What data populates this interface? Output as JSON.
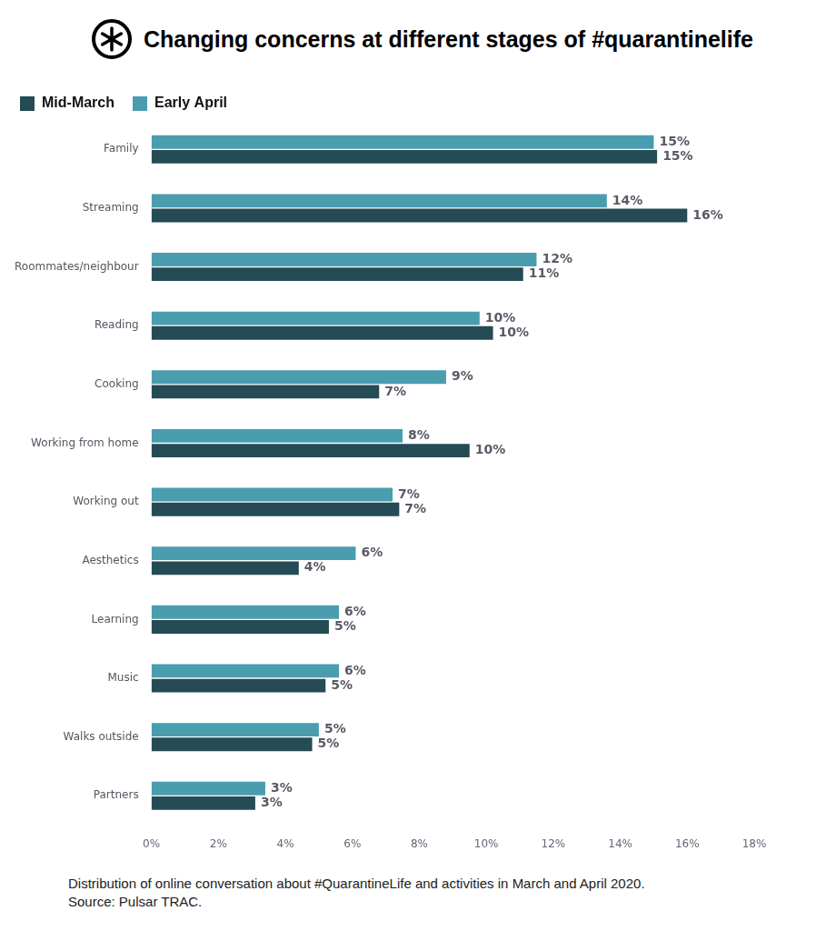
{
  "chart_data": {
    "type": "bar",
    "title": "Changing concerns at different stages of #quarantinelife",
    "caption": "Distribution of online conversation about #QuarantineLife and activities in March and April 2020. Source: Pulsar TRAC.",
    "orientation": "horizontal",
    "categories": [
      "Family",
      "Streaming",
      "Roommates/neighbour",
      "Reading",
      "Cooking",
      "Working from home",
      "Working out",
      "Aesthetics",
      "Learning",
      "Music",
      "Walks outside",
      "Partners"
    ],
    "series": [
      {
        "name": "Mid-March",
        "color": "#254b55",
        "values": [
          15.1,
          16.0,
          11.1,
          10.2,
          6.8,
          9.5,
          7.4,
          4.4,
          5.3,
          5.2,
          4.8,
          3.1
        ],
        "value_labels": [
          "15%",
          "16%",
          "11%",
          "10%",
          "7%",
          "10%",
          "7%",
          "4%",
          "5%",
          "5%",
          "5%",
          "3%"
        ]
      },
      {
        "name": "Early April",
        "color": "#4a9daf",
        "values": [
          15.0,
          13.6,
          11.5,
          9.8,
          8.8,
          7.5,
          7.2,
          6.1,
          5.6,
          5.6,
          5.0,
          3.4
        ],
        "value_labels": [
          "15%",
          "14%",
          "12%",
          "10%",
          "9%",
          "8%",
          "7%",
          "6%",
          "6%",
          "6%",
          "5%",
          "3%"
        ]
      }
    ],
    "xlim": [
      0,
      18
    ],
    "xticks": [
      {
        "value": 0,
        "label": "0%"
      },
      {
        "value": 2,
        "label": "2%"
      },
      {
        "value": 4,
        "label": "4%"
      },
      {
        "value": 6,
        "label": "6%"
      },
      {
        "value": 8,
        "label": "8%"
      },
      {
        "value": 10,
        "label": "10%"
      },
      {
        "value": 12,
        "label": "12%"
      },
      {
        "value": 14,
        "label": "14%"
      },
      {
        "value": 16,
        "label": "16%"
      },
      {
        "value": 18,
        "label": "18%"
      }
    ],
    "grid": false,
    "legend": "top-left",
    "data_labels": true
  }
}
